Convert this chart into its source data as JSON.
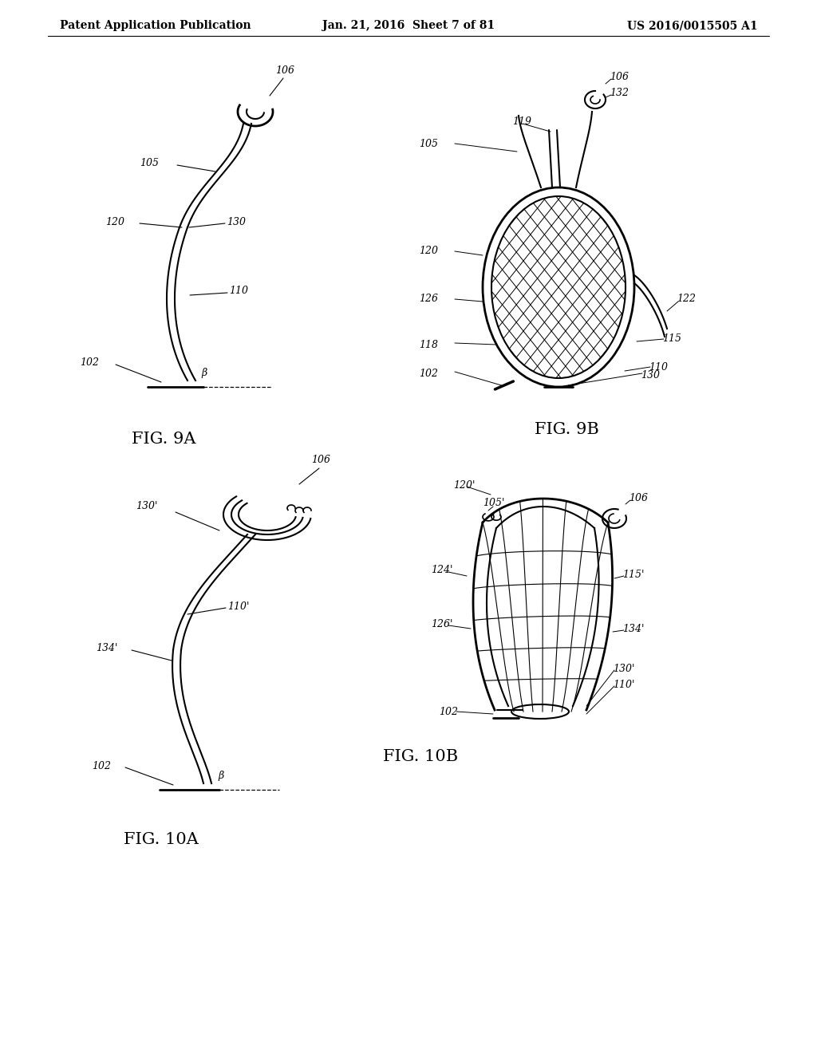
{
  "background_color": "#ffffff",
  "header_left": "Patent Application Publication",
  "header_mid": "Jan. 21, 2016  Sheet 7 of 81",
  "header_right": "US 2016/0015505 A1",
  "fig9a_label": "FIG. 9A",
  "fig9b_label": "FIG. 9B",
  "fig10a_label": "FIG. 10A",
  "fig10b_label": "FIG. 10B",
  "line_color": "#000000",
  "line_width": 1.5,
  "label_fontsize": 9,
  "header_fontsize": 10,
  "fig_label_fontsize": 15
}
